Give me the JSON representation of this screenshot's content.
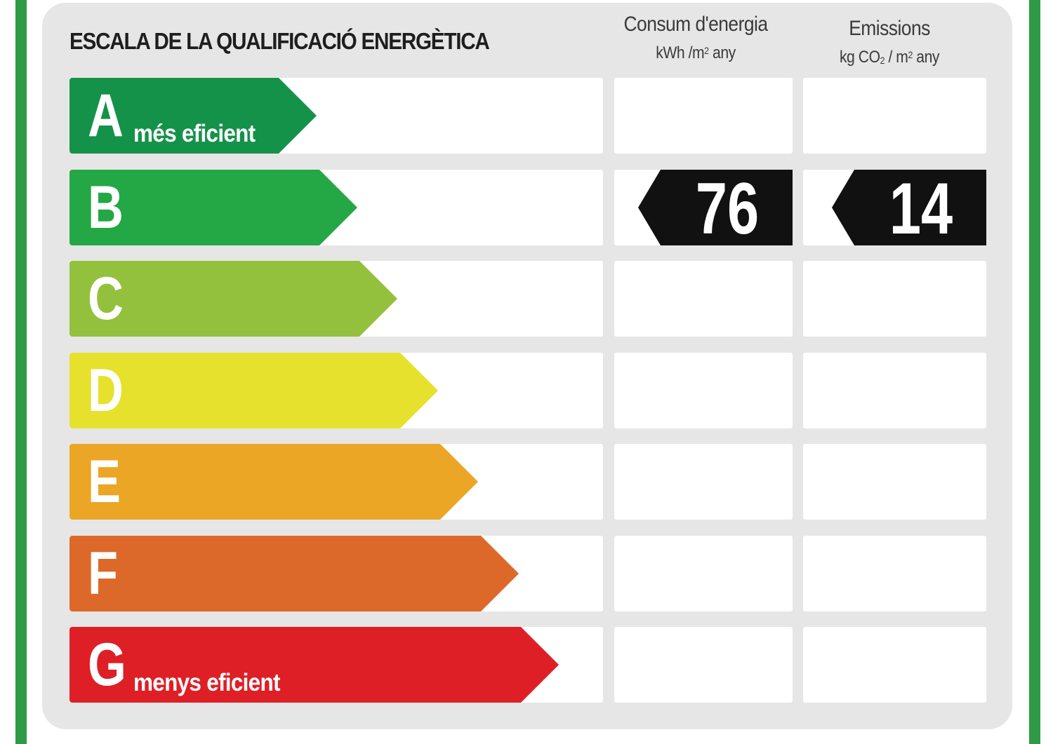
{
  "title": "ESCALA DE LA QUALIFICACIÓ ENERGÈTICA",
  "columns": {
    "energy": {
      "label": "Consum d'energia",
      "unit_prefix": "kWh /m",
      "unit_exp": "2",
      "unit_suffix": " any"
    },
    "emissions": {
      "label": "Emissions",
      "unit_prefix": "kg CO",
      "unit_sub": "2",
      "unit_mid": " / m",
      "unit_exp": "2",
      "unit_suffix": " any"
    }
  },
  "ratings": [
    {
      "letter": "A",
      "label": "més eficient",
      "color": "#15924a"
    },
    {
      "letter": "B",
      "label": "",
      "color": "#24a745"
    },
    {
      "letter": "C",
      "label": "",
      "color": "#93c13d"
    },
    {
      "letter": "D",
      "label": "",
      "color": "#e6e12c"
    },
    {
      "letter": "E",
      "label": "",
      "color": "#eba626"
    },
    {
      "letter": "F",
      "label": "",
      "color": "#dc692a"
    },
    {
      "letter": "G",
      "label": "menys eficient",
      "color": "#de1f26"
    }
  ],
  "result": {
    "rating": "B",
    "energy_value": "76",
    "emissions_value": "14"
  }
}
